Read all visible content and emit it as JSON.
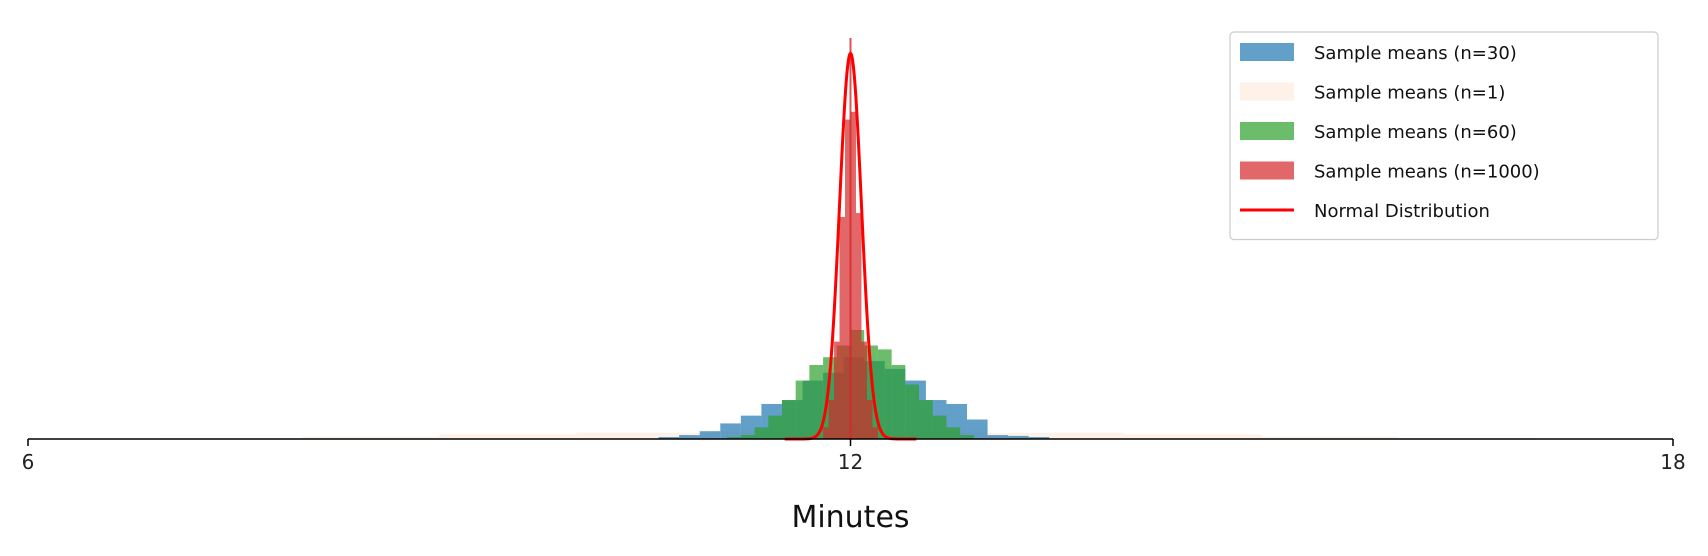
{
  "chart_data": {
    "type": "histogram",
    "title": "",
    "xlabel": "Minutes",
    "ylabel": "",
    "xlim": [
      6,
      18
    ],
    "ylim": [
      0,
      10.5
    ],
    "x_ticks": [
      "6",
      "12",
      "18"
    ],
    "grid": false,
    "legend_position": "top-right",
    "series": [
      {
        "name": "Sample means (n=1)",
        "type": "histogram",
        "color": "#fde8d6",
        "bin_edges": [
          7,
          8,
          9,
          10,
          11,
          12,
          13,
          14,
          15,
          16,
          17
        ],
        "values": [
          0.02,
          0.06,
          0.12,
          0.16,
          0.2,
          0.2,
          0.16,
          0.12,
          0.06,
          0.02
        ]
      },
      {
        "name": "Sample means (n=30)",
        "type": "histogram",
        "color": "#1f77b4",
        "bin_edges": [
          10.6,
          10.75,
          10.9,
          11.05,
          11.2,
          11.35,
          11.5,
          11.65,
          11.8,
          11.95,
          12.1,
          12.25,
          12.4,
          12.55,
          12.7,
          12.85,
          13.0,
          13.15,
          13.3,
          13.45
        ],
        "values": [
          0.05,
          0.1,
          0.2,
          0.4,
          0.6,
          0.9,
          1.0,
          1.5,
          1.7,
          2.1,
          2.0,
          1.8,
          1.5,
          1.0,
          0.9,
          0.5,
          0.1,
          0.08,
          0.05
        ]
      },
      {
        "name": "Sample means (n=60)",
        "type": "histogram",
        "color": "#2ca02c",
        "bin_edges": [
          11.1,
          11.2,
          11.3,
          11.4,
          11.5,
          11.6,
          11.7,
          11.8,
          11.9,
          12.0,
          12.1,
          12.2,
          12.3,
          12.4,
          12.5,
          12.6,
          12.7,
          12.8,
          12.9
        ],
        "values": [
          0.05,
          0.1,
          0.3,
          0.6,
          1.0,
          1.5,
          1.9,
          2.1,
          2.4,
          2.8,
          2.4,
          2.3,
          1.9,
          1.4,
          1.0,
          0.6,
          0.3,
          0.1
        ]
      },
      {
        "name": "Sample means (n=1000)",
        "type": "histogram",
        "color": "#d62728",
        "bin_edges": [
          11.8,
          11.84,
          11.88,
          11.92,
          11.96,
          12.0,
          12.04,
          12.08,
          12.12,
          12.16,
          12.2
        ],
        "values": [
          0.3,
          1.0,
          2.5,
          5.7,
          8.2,
          8.4,
          5.8,
          2.5,
          1.0,
          0.3
        ]
      },
      {
        "name": "Normal Distribution",
        "type": "line",
        "color": "#ff0000",
        "mean": 12.0,
        "std": 0.08,
        "peak": 9.9
      }
    ],
    "legend_order": [
      "Sample means (n=30)",
      "Sample means (n=1)",
      "Sample means (n=60)",
      "Sample means (n=1000)",
      "Normal Distribution"
    ],
    "annotations": [
      {
        "type": "vline",
        "x": 12.0,
        "color": "#d62728"
      }
    ]
  }
}
